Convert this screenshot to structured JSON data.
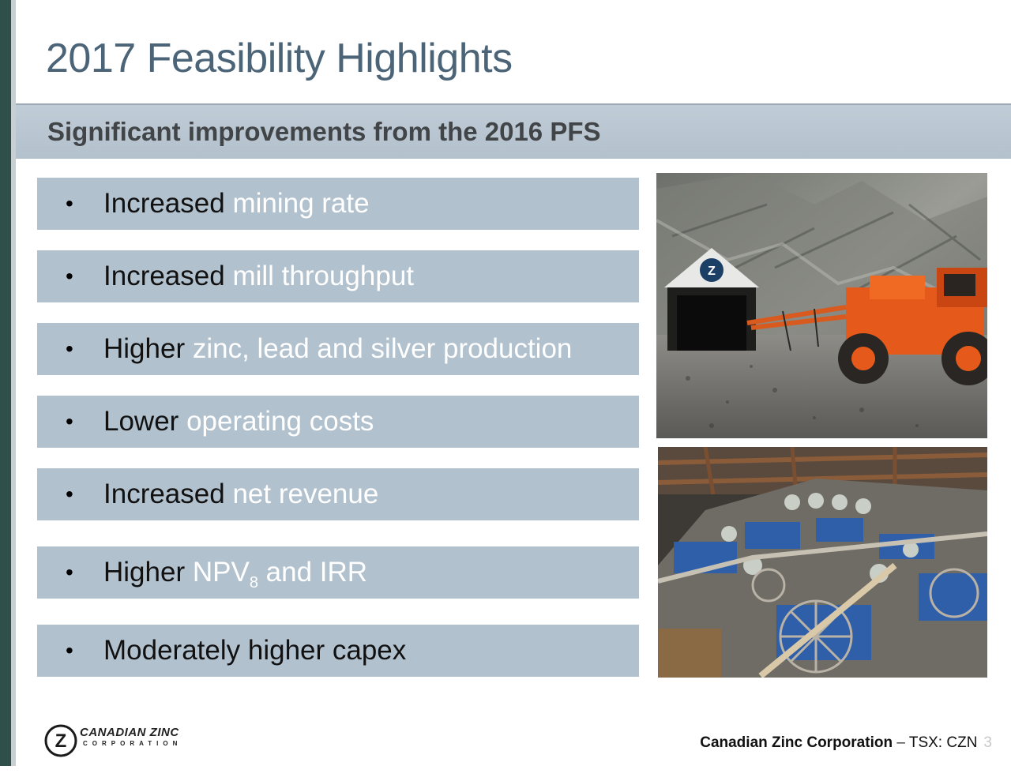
{
  "slide": {
    "title": "2017 Feasibility Highlights",
    "subtitle": "Significant improvements from the 2016 PFS",
    "bullets": [
      {
        "dark": "Increased",
        "light": "mining rate"
      },
      {
        "dark": "Increased",
        "light": "mill throughput"
      },
      {
        "dark": "Higher",
        "light": "zinc, lead and silver production"
      },
      {
        "dark": "Lower",
        "light": "operating costs"
      },
      {
        "dark": "Increased",
        "light": "net revenue"
      },
      {
        "dark": "Higher",
        "light_pre": "NPV",
        "light_sub": "8",
        "light_post": " and IRR"
      },
      {
        "dark": "Moderately higher capex",
        "light": ""
      }
    ],
    "bullet_symbol": "•"
  },
  "photos": {
    "top": "mine-portal-drill-rig",
    "bottom": "mill-flotation-cells"
  },
  "footer": {
    "logo_mark": "Z",
    "logo_name": "CANADIAN ZINC",
    "logo_sub": "CORPORATION",
    "company": "Canadian Zinc Corporation",
    "separator": " – ",
    "ticker": "TSX: CZN",
    "page_number": "3"
  },
  "colors": {
    "title": "#4b6477",
    "band": "#b2c1ce",
    "accent_bar": "#2f4f4b",
    "bullet_highlight": "#ffffff"
  }
}
